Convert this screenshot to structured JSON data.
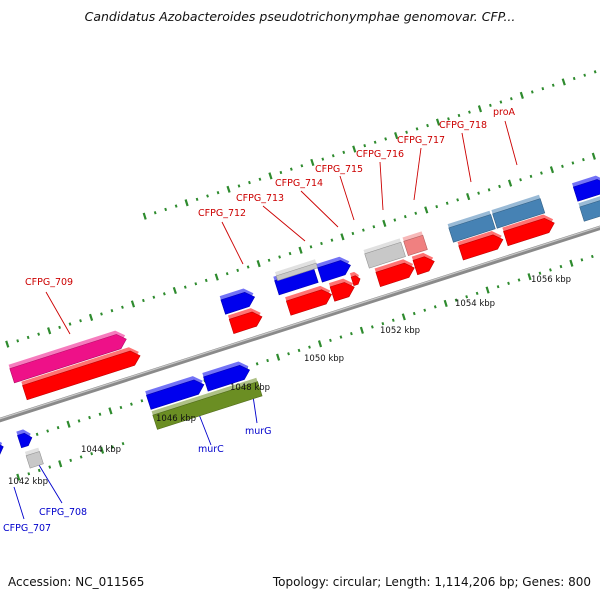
{
  "header": {
    "title": "Candidatus Azobacteroides pseudotrichonymphae genomovar. CFP..."
  },
  "footer": {
    "accession": "Accession: NC_011565",
    "summary": "Topology: circular; Length: 1,114,206 bp; Genes: 800"
  },
  "colors": {
    "backbone": "#8a8a8a",
    "tick": "#2e8b2e",
    "label_top": "#cc0000",
    "label_bottom": "#0000cc",
    "leader_top": "#cc0000",
    "leader_bottom": "#0000cc",
    "red": "#ff0000",
    "blue": "#0000ee",
    "magenta": "#ee1188",
    "olive": "#6b8e23",
    "gray": "#c8c8c8",
    "steelblue": "#4682b4",
    "pink": "#f08080"
  },
  "scale_labels": [
    {
      "id": "kbp-1042",
      "text": "1042 kbp"
    },
    {
      "id": "kbp-1044",
      "text": "1044 kbp"
    },
    {
      "id": "kbp-1046",
      "text": "1046 kbp"
    },
    {
      "id": "kbp-1048",
      "text": "1048 kbp"
    },
    {
      "id": "kbp-1050",
      "text": "1050 kbp"
    },
    {
      "id": "kbp-1052",
      "text": "1052 kbp"
    },
    {
      "id": "kbp-1054",
      "text": "1054 kbp"
    },
    {
      "id": "kbp-1056",
      "text": "1056 kbp"
    }
  ],
  "gene_labels": [
    {
      "id": "cfpg-709",
      "text": "CFPG_709",
      "side": "top"
    },
    {
      "id": "cfpg-712",
      "text": "CFPG_712",
      "side": "top"
    },
    {
      "id": "cfpg-713",
      "text": "CFPG_713",
      "side": "top"
    },
    {
      "id": "cfpg-714",
      "text": "CFPG_714",
      "side": "top"
    },
    {
      "id": "cfpg-715",
      "text": "CFPG_715",
      "side": "top"
    },
    {
      "id": "cfpg-716",
      "text": "CFPG_716",
      "side": "top"
    },
    {
      "id": "cfpg-717",
      "text": "CFPG_717",
      "side": "top"
    },
    {
      "id": "cfpg-718",
      "text": "CFPG_718",
      "side": "top"
    },
    {
      "id": "proa",
      "text": "proA",
      "side": "top"
    },
    {
      "id": "murc",
      "text": "murC",
      "side": "bottom"
    },
    {
      "id": "murg",
      "text": "murG",
      "side": "bottom"
    },
    {
      "id": "cfpg-707",
      "text": "CFPG_707",
      "side": "bottom"
    },
    {
      "id": "cfpg-708",
      "text": "CFPG_708",
      "side": "bottom"
    }
  ],
  "features": [
    {
      "id": "cfpg-709-gene",
      "color": "magenta",
      "track": "outer"
    },
    {
      "id": "cfpg-709-cds",
      "color": "red",
      "track": "inner"
    },
    {
      "id": "cfpg-712-gene",
      "color": "blue",
      "track": "outer"
    },
    {
      "id": "cfpg-712-cds",
      "color": "red",
      "track": "inner"
    },
    {
      "id": "cfpg-713-gene",
      "color": "blue",
      "track": "outer"
    },
    {
      "id": "cfpg-714-gene",
      "color": "gray",
      "track": "outer"
    },
    {
      "id": "cfpg-715-gene",
      "color": "blue",
      "track": "outer"
    },
    {
      "id": "cfpg-713-cds",
      "color": "red",
      "track": "inner"
    },
    {
      "id": "cfpg-714-cds",
      "color": "red",
      "track": "inner"
    },
    {
      "id": "cfpg-715-cds",
      "color": "red",
      "track": "inner"
    },
    {
      "id": "cfpg-716-gene",
      "color": "gray",
      "track": "outer"
    },
    {
      "id": "cfpg-717-gene",
      "color": "pink",
      "track": "outer"
    },
    {
      "id": "cfpg-716-cds",
      "color": "red",
      "track": "inner"
    },
    {
      "id": "cfpg-717-cds",
      "color": "red",
      "track": "inner"
    },
    {
      "id": "cfpg-718-gene",
      "color": "steelblue",
      "track": "outer"
    },
    {
      "id": "proa-gene",
      "color": "steelblue",
      "track": "outer"
    },
    {
      "id": "cfpg-718-cds",
      "color": "red",
      "track": "inner"
    },
    {
      "id": "proa-cds",
      "color": "red",
      "track": "inner"
    },
    {
      "id": "next-gene",
      "color": "blue",
      "track": "outer"
    },
    {
      "id": "next-cds",
      "color": "steelblue",
      "track": "inner"
    },
    {
      "id": "murc-gene",
      "color": "blue",
      "track": "outer"
    },
    {
      "id": "murg-gene",
      "color": "blue",
      "track": "outer"
    },
    {
      "id": "murc-cds",
      "color": "olive",
      "track": "inner"
    },
    {
      "id": "cfpg-708-gene",
      "color": "blue",
      "track": "outer"
    },
    {
      "id": "cfpg-708-cds",
      "color": "gray",
      "track": "inner"
    },
    {
      "id": "cfpg-707-gene",
      "color": "blue",
      "track": "outer"
    }
  ]
}
